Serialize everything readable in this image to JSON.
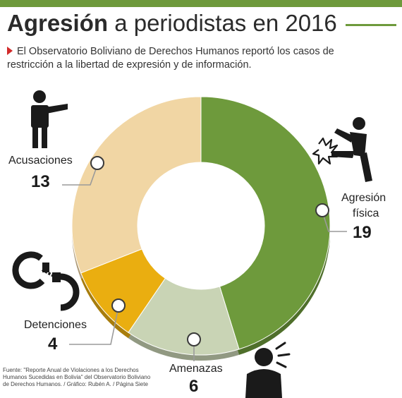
{
  "chart_data": {
    "type": "pie",
    "title": "Agresión a periodistas en 2016",
    "title_bold": "Agresión",
    "title_rest": " a periodistas en 2016",
    "subtitle": "El Observatorio Boliviano de Derechos Humanos reportó los casos de restricción a la libertad de expresión y de información.",
    "categories": [
      "Agresión física",
      "Amenazas",
      "Detenciones",
      "Acusaciones"
    ],
    "values": [
      19,
      6,
      4,
      13
    ],
    "colors": [
      "#6e9a3c",
      "#c9d4b5",
      "#eaae10",
      "#f1d6a4"
    ],
    "labels": {
      "agresion_line1": "Agresión",
      "agresion_line2": "física",
      "amenazas": "Amenazas",
      "detenciones": "Detenciones",
      "acusaciones": "Acusaciones"
    },
    "display_values": {
      "agresion": "19",
      "amenazas": "6",
      "detenciones": "4",
      "acusaciones": "13"
    },
    "source": "Fuente: \"Reporte Anual de Violaciones a los Derechos Humanos Sucedidas en Bolivia\" del Observatorio Boliviano de Derechos Humanos. / Gráfico: Rubén A. / Página Siete"
  },
  "colors": {
    "accent": "#6e9a3c",
    "bullet": "#d22b2b",
    "icon": "#1a1a1a"
  },
  "icons": [
    "accusation-icon",
    "kick-icon",
    "handcuffs-icon",
    "shouting-icon"
  ]
}
